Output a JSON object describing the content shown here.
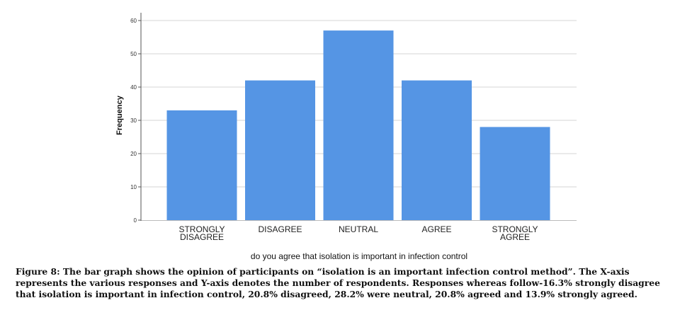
{
  "chart_data": {
    "type": "bar",
    "categories": [
      [
        "STRONGLY",
        "DISAGREE"
      ],
      [
        "DISAGREE"
      ],
      [
        "NEUTRAL"
      ],
      [
        "AGREE"
      ],
      [
        "STRONGLY",
        "AGREE"
      ]
    ],
    "values": [
      33,
      42,
      57,
      42,
      28
    ],
    "xlabel": "do you agree that isolation is important in infection control",
    "ylabel": "Frequency",
    "ylim": [
      0,
      60
    ],
    "yticks": [
      0,
      10,
      20,
      30,
      40,
      50,
      60
    ],
    "grid": true,
    "legend": "none",
    "bar_color": "#5595e4"
  },
  "caption": "Figure 8: The bar graph shows the opinion of participants on “isolation is an important infection control method”. The X-axis represents the various responses and Y-axis denotes the number of respondents. Responses whereas follow-16.3% strongly disagree that isolation is important in infection control, 20.8% disagreed, 28.2% were neutral, 20.8% agreed and 13.9% strongly agreed."
}
